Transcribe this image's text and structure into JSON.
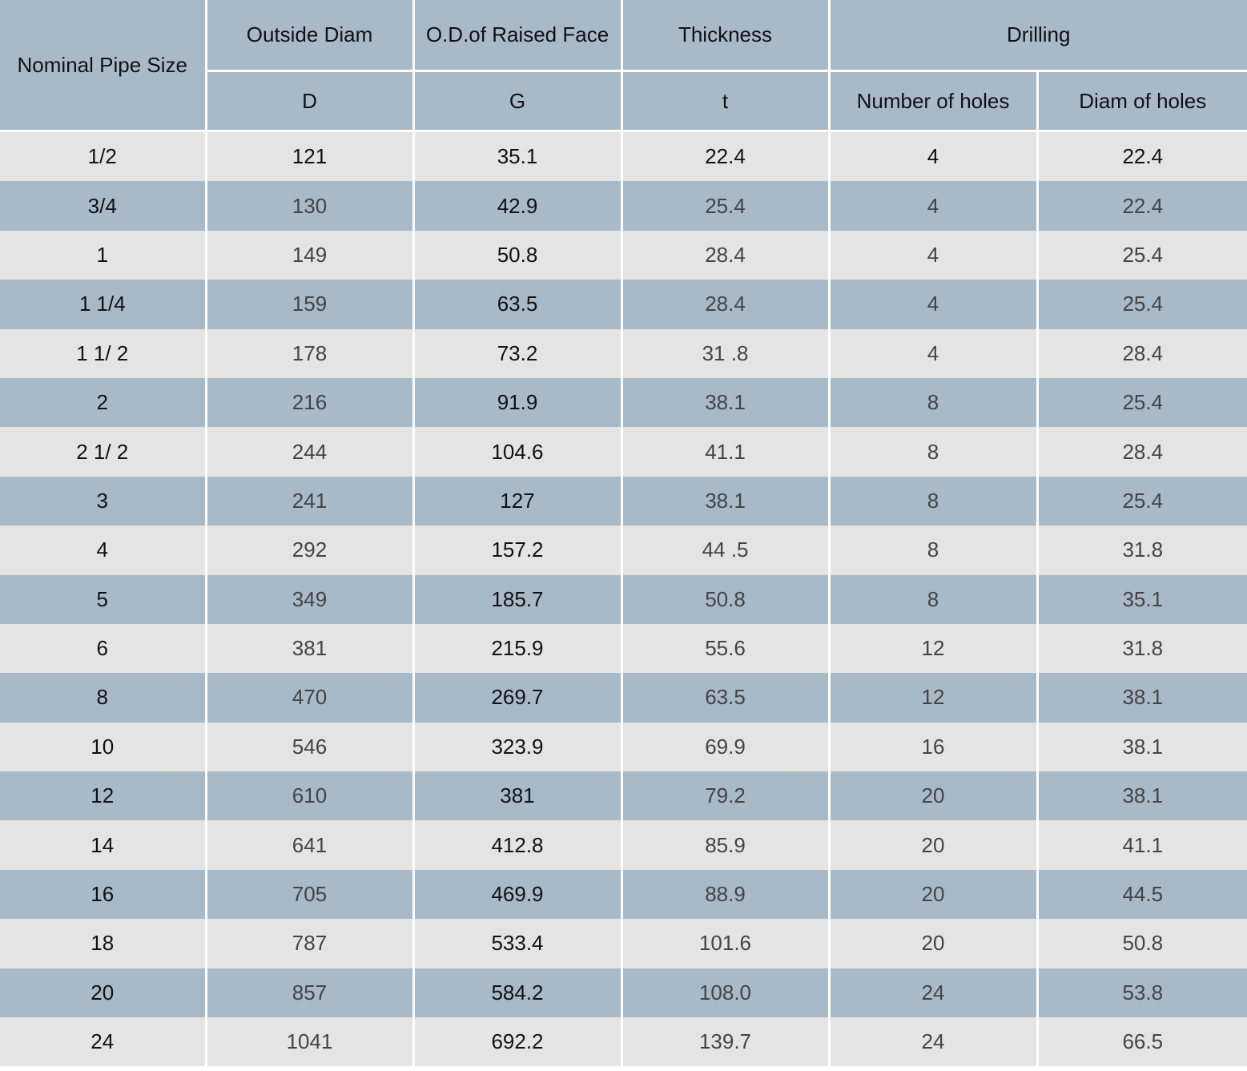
{
  "header": {
    "nominal_pipe_size": "Nominal Pipe Size",
    "outside_diam": "Outside Diam",
    "od_raised_face": "O.D.of Raised Face",
    "thickness": "Thickness",
    "drilling": "Drilling",
    "sub_d": "D",
    "sub_g": "G",
    "sub_t": "t",
    "number_of_holes": "Number of holes",
    "diam_of_holes": "Diam of holes"
  },
  "rows": [
    [
      "1/2",
      "121",
      "35.1",
      "22.4",
      "4",
      "22.4"
    ],
    [
      "3/4",
      "130",
      "42.9",
      "25.4",
      "4",
      "22.4"
    ],
    [
      "1",
      "149",
      "50.8",
      "28.4",
      "4",
      "25.4"
    ],
    [
      "1 1/4",
      "159",
      "63.5",
      "28.4",
      "4",
      "25.4"
    ],
    [
      "1 1/ 2",
      "178",
      "73.2",
      "31 .8",
      "4",
      "28.4"
    ],
    [
      "2",
      "216",
      "91.9",
      "38.1",
      "8",
      "25.4"
    ],
    [
      "2 1/ 2",
      "244",
      "104.6",
      "41.1",
      "8",
      "28.4"
    ],
    [
      "3",
      "241",
      "127",
      "38.1",
      "8",
      "25.4"
    ],
    [
      "4",
      "292",
      "157.2",
      "44 .5",
      "8",
      "31.8"
    ],
    [
      "5",
      "349",
      "185.7",
      "50.8",
      "8",
      "35.1"
    ],
    [
      "6",
      "381",
      "215.9",
      "55.6",
      "12",
      "31.8"
    ],
    [
      "8",
      "470",
      "269.7",
      "63.5",
      "12",
      "38.1"
    ],
    [
      "10",
      "546",
      "323.9",
      "69.9",
      "16",
      "38.1"
    ],
    [
      "12",
      "610",
      "381",
      "79.2",
      "20",
      "38.1"
    ],
    [
      "14",
      "641",
      "412.8",
      "85.9",
      "20",
      "41.1"
    ],
    [
      "16",
      "705",
      "469.9",
      "88.9",
      "20",
      "44.5"
    ],
    [
      "18",
      "787",
      "533.4",
      "101.6",
      "20",
      "50.8"
    ],
    [
      "20",
      "857",
      "584.2",
      "108.0",
      "24",
      "53.8"
    ],
    [
      "24",
      "1041",
      "692.2",
      "139.7",
      "24",
      "66.5"
    ]
  ]
}
